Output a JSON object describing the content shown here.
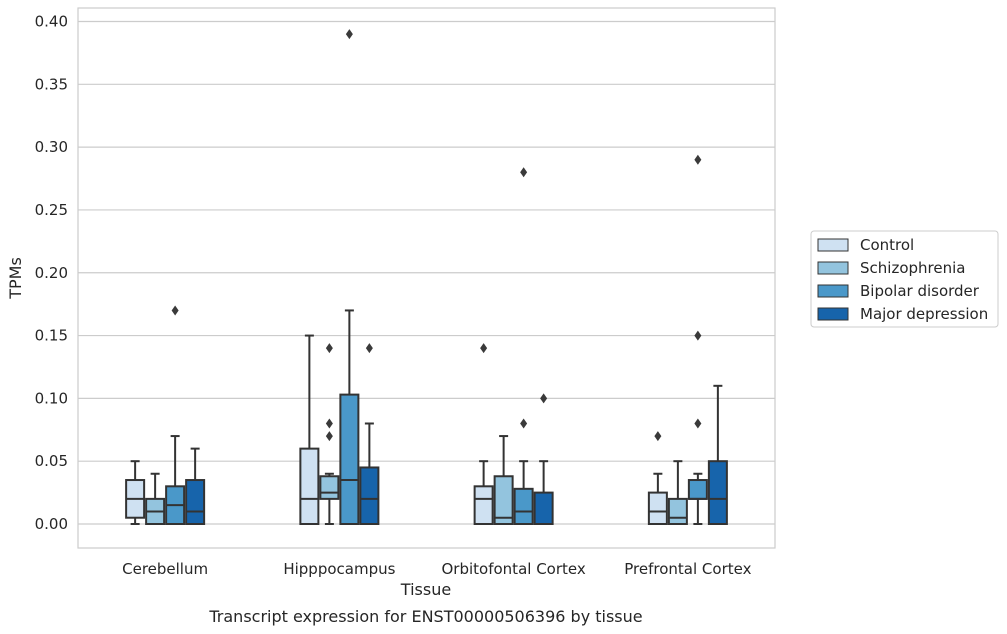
{
  "chart_data": {
    "type": "box",
    "title": "",
    "caption": "Transcript expression for ENST00000506396 by tissue",
    "xlabel": "Tissue",
    "ylabel": "TPMs",
    "ylim": [
      -0.019,
      0.41
    ],
    "yticks": [
      "0.00",
      "0.05",
      "0.10",
      "0.15",
      "0.20",
      "0.25",
      "0.30",
      "0.35",
      "0.40"
    ],
    "grid": "horizontal",
    "legend_position": "right",
    "categories": [
      "Cerebellum",
      "Hipppocampus",
      "Orbitofontal Cortex",
      "Prefrontal Cortex"
    ],
    "series": [
      {
        "name": "Control",
        "color": "#cfe1f2",
        "boxes": [
          {
            "min": 0.0,
            "q1": 0.005,
            "median": 0.02,
            "q3": 0.035,
            "max": 0.05,
            "outliers": []
          },
          {
            "min": 0.0,
            "q1": 0.0,
            "median": 0.02,
            "q3": 0.06,
            "max": 0.15,
            "outliers": []
          },
          {
            "min": 0.0,
            "q1": 0.0,
            "median": 0.02,
            "q3": 0.03,
            "max": 0.05,
            "outliers": [
              0.14
            ]
          },
          {
            "min": 0.0,
            "q1": 0.0,
            "median": 0.01,
            "q3": 0.025,
            "max": 0.04,
            "outliers": [
              0.07
            ]
          }
        ]
      },
      {
        "name": "Schizophrenia",
        "color": "#93c4de",
        "boxes": [
          {
            "min": 0.0,
            "q1": 0.0,
            "median": 0.01,
            "q3": 0.02,
            "max": 0.04,
            "outliers": []
          },
          {
            "min": 0.0,
            "q1": 0.02,
            "median": 0.025,
            "q3": 0.038,
            "max": 0.04,
            "outliers": [
              0.07,
              0.08,
              0.14
            ]
          },
          {
            "min": 0.0,
            "q1": 0.0,
            "median": 0.005,
            "q3": 0.038,
            "max": 0.07,
            "outliers": []
          },
          {
            "min": 0.0,
            "q1": 0.0,
            "median": 0.005,
            "q3": 0.02,
            "max": 0.05,
            "outliers": []
          }
        ]
      },
      {
        "name": "Bipolar disorder",
        "color": "#4a98c9",
        "boxes": [
          {
            "min": 0.0,
            "q1": 0.0,
            "median": 0.015,
            "q3": 0.03,
            "max": 0.07,
            "outliers": [
              0.17
            ]
          },
          {
            "min": 0.0,
            "q1": 0.0,
            "median": 0.035,
            "q3": 0.103,
            "max": 0.17,
            "outliers": [
              0.39
            ]
          },
          {
            "min": 0.0,
            "q1": 0.0,
            "median": 0.01,
            "q3": 0.028,
            "max": 0.05,
            "outliers": [
              0.08,
              0.28
            ]
          },
          {
            "min": 0.0,
            "q1": 0.02,
            "median": 0.02,
            "q3": 0.035,
            "max": 0.04,
            "outliers": [
              0.08,
              0.15,
              0.29
            ]
          }
        ]
      },
      {
        "name": "Major depression",
        "color": "#1764ab",
        "boxes": [
          {
            "min": 0.0,
            "q1": 0.0,
            "median": 0.01,
            "q3": 0.035,
            "max": 0.06,
            "outliers": []
          },
          {
            "min": 0.0,
            "q1": 0.0,
            "median": 0.02,
            "q3": 0.045,
            "max": 0.08,
            "outliers": [
              0.14
            ]
          },
          {
            "min": 0.0,
            "q1": 0.0,
            "median": 0.0,
            "q3": 0.025,
            "max": 0.05,
            "outliers": [
              0.1
            ]
          },
          {
            "min": 0.0,
            "q1": 0.0,
            "median": 0.02,
            "q3": 0.05,
            "max": 0.11,
            "outliers": []
          }
        ]
      }
    ]
  }
}
